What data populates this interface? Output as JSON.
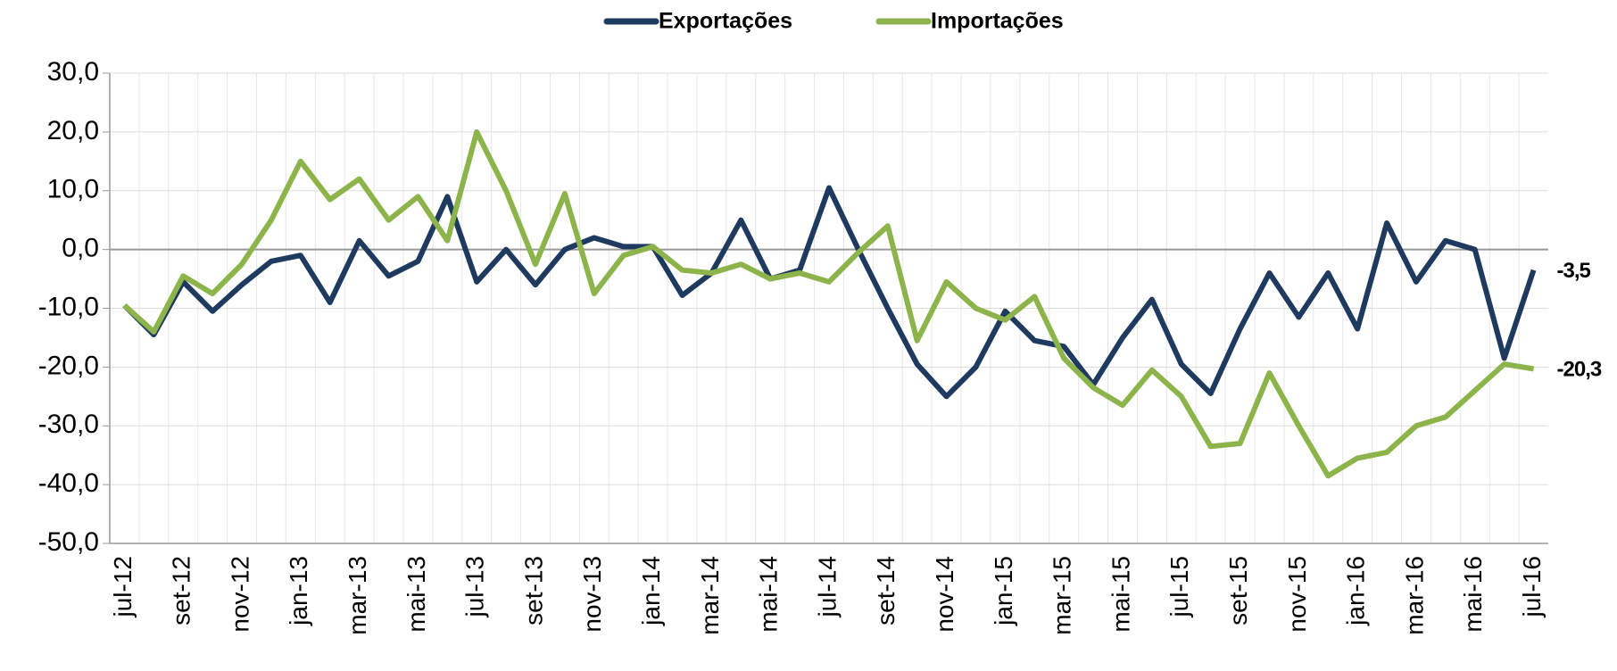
{
  "chart_data": {
    "type": "line",
    "categories": [
      "jul-12",
      null,
      "set-12",
      null,
      "nov-12",
      null,
      "jan-13",
      null,
      "mar-13",
      null,
      "mai-13",
      null,
      "jul-13",
      null,
      "set-13",
      null,
      "nov-13",
      null,
      "jan-14",
      null,
      "mar-14",
      null,
      "mai-14",
      null,
      "jul-14",
      null,
      "set-14",
      null,
      "nov-14",
      null,
      "jan-15",
      null,
      "mar-15",
      null,
      "mai-15",
      null,
      "jul-15",
      null,
      "set-15",
      null,
      "nov-15",
      null,
      "jan-16",
      null,
      "mar-16",
      null,
      "mai-16",
      null,
      "jul-16"
    ],
    "series": [
      {
        "name": "Exportações",
        "color": "#1f3a5f",
        "values": [
          -9.5,
          -14.5,
          -5.5,
          -10.5,
          -6,
          -2,
          -1,
          -9,
          1.5,
          -4.5,
          -2,
          9,
          -5.5,
          0,
          -6,
          0,
          2,
          0.5,
          0.5,
          -7.8,
          -4,
          5,
          -5,
          -3.5,
          10.5,
          0,
          -10,
          -19.5,
          -25,
          -20,
          -10.5,
          -15.5,
          -16.5,
          -23,
          -15,
          -8.5,
          -19.5,
          -24.5,
          -13.5,
          -4,
          -11.5,
          -4,
          -13.5,
          4.5,
          -5.5,
          1.5,
          0,
          -18.5,
          -3.5
        ],
        "value_labels": [
          null,
          null,
          null,
          null,
          null,
          null,
          null,
          null,
          null,
          null,
          null,
          null,
          null,
          null,
          null,
          null,
          null,
          null,
          null,
          null,
          null,
          null,
          null,
          null,
          null,
          null,
          null,
          null,
          null,
          null,
          null,
          null,
          null,
          null,
          null,
          null,
          null,
          null,
          null,
          null,
          null,
          null,
          null,
          null,
          null,
          null,
          null,
          null,
          "-3,5"
        ]
      },
      {
        "name": "Importações",
        "color": "#8db44a",
        "label_color": "#4f6a25",
        "values": [
          -9.5,
          -14,
          -4.5,
          -7.5,
          -2.5,
          5,
          15,
          8.5,
          12,
          5,
          9,
          1.5,
          20,
          10,
          -2.5,
          9.5,
          -7.5,
          -1,
          0.5,
          -3.5,
          -4,
          -2.5,
          -5,
          -4,
          -5.5,
          -0.5,
          4,
          -15.5,
          -5.5,
          -10,
          -12,
          -8,
          -18.5,
          -23.5,
          -26.5,
          -20.5,
          -25,
          -33.5,
          -33,
          -21,
          -30,
          -38.5,
          -35.5,
          -34.5,
          -30,
          -28.5,
          -24,
          -19.5,
          -20.3
        ],
        "value_labels": [
          null,
          null,
          null,
          null,
          null,
          null,
          null,
          null,
          null,
          null,
          null,
          null,
          null,
          null,
          null,
          null,
          null,
          null,
          null,
          null,
          null,
          null,
          null,
          null,
          null,
          null,
          null,
          null,
          null,
          null,
          null,
          null,
          null,
          null,
          null,
          null,
          null,
          null,
          null,
          null,
          null,
          null,
          null,
          null,
          null,
          null,
          null,
          null,
          "-20,3"
        ]
      }
    ],
    "ylim": [
      -50,
      30
    ],
    "yticks": [
      {
        "value": -50,
        "label": "-50,0"
      },
      {
        "value": -40,
        "label": "-40,0"
      },
      {
        "value": -30,
        "label": "-30,0"
      },
      {
        "value": -20,
        "label": "-20,0"
      },
      {
        "value": -10,
        "label": "-10,0"
      },
      {
        "value": 0,
        "label": "0,0"
      },
      {
        "value": 10,
        "label": "10,0"
      },
      {
        "value": 20,
        "label": "20,0"
      },
      {
        "value": 30,
        "label": "30,0"
      }
    ],
    "grid": true,
    "legend": "top"
  }
}
